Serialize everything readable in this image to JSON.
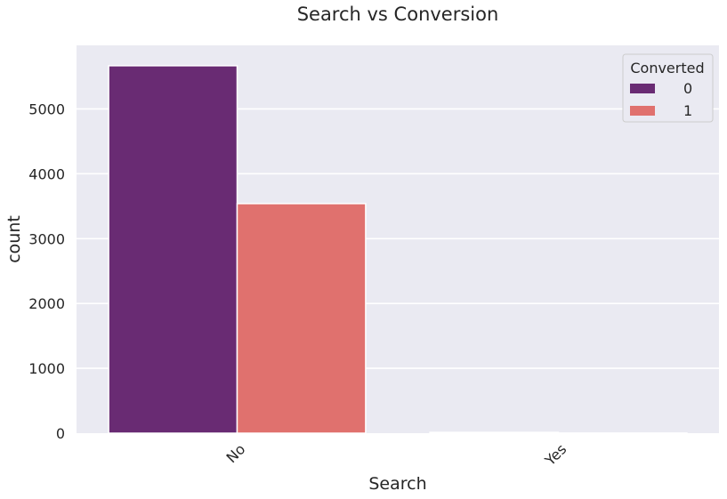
{
  "chart_data": {
    "type": "bar",
    "title": "Search vs Conversion",
    "xlabel": "Search",
    "ylabel": "count",
    "categories": [
      "No",
      "Yes"
    ],
    "series": [
      {
        "name": "0",
        "values": [
          5666,
          12
        ],
        "color": "#692b73"
      },
      {
        "name": "1",
        "values": [
          3540,
          2
        ],
        "color": "#e0716e"
      }
    ],
    "ylim": [
      0,
      5980
    ],
    "yticks": [
      0,
      1000,
      2000,
      3000,
      4000,
      5000
    ],
    "legend": {
      "title": "Converted",
      "placement": "top-right"
    },
    "grid": true,
    "background": "#eaeaf2"
  }
}
